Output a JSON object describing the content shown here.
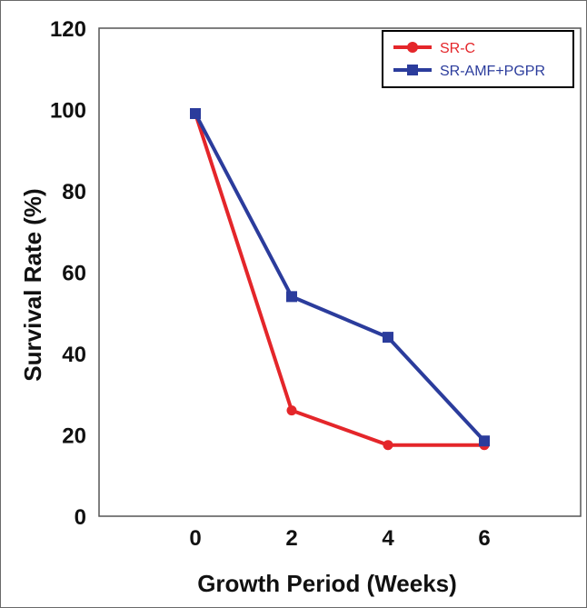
{
  "chart_data": {
    "type": "line",
    "title": "",
    "xlabel": "Growth Period (Weeks)",
    "ylabel": "Survival Rate (%)",
    "x": [
      0,
      2,
      4,
      6
    ],
    "xlim": [
      -2,
      8
    ],
    "ylim": [
      0,
      120
    ],
    "xticks": [
      "0",
      "2",
      "4",
      "6"
    ],
    "yticks": [
      "0",
      "20",
      "40",
      "60",
      "80",
      "100",
      "120"
    ],
    "grid": false,
    "legend_position": "top-right",
    "series": [
      {
        "name": "SR-C",
        "values": [
          99,
          26,
          17.5,
          17.5
        ],
        "color": "#e4262a",
        "marker": "circle"
      },
      {
        "name": "SR-AMF+PGPR",
        "values": [
          99,
          54,
          44,
          18.5
        ],
        "color": "#2b3c9c",
        "marker": "square"
      }
    ]
  }
}
